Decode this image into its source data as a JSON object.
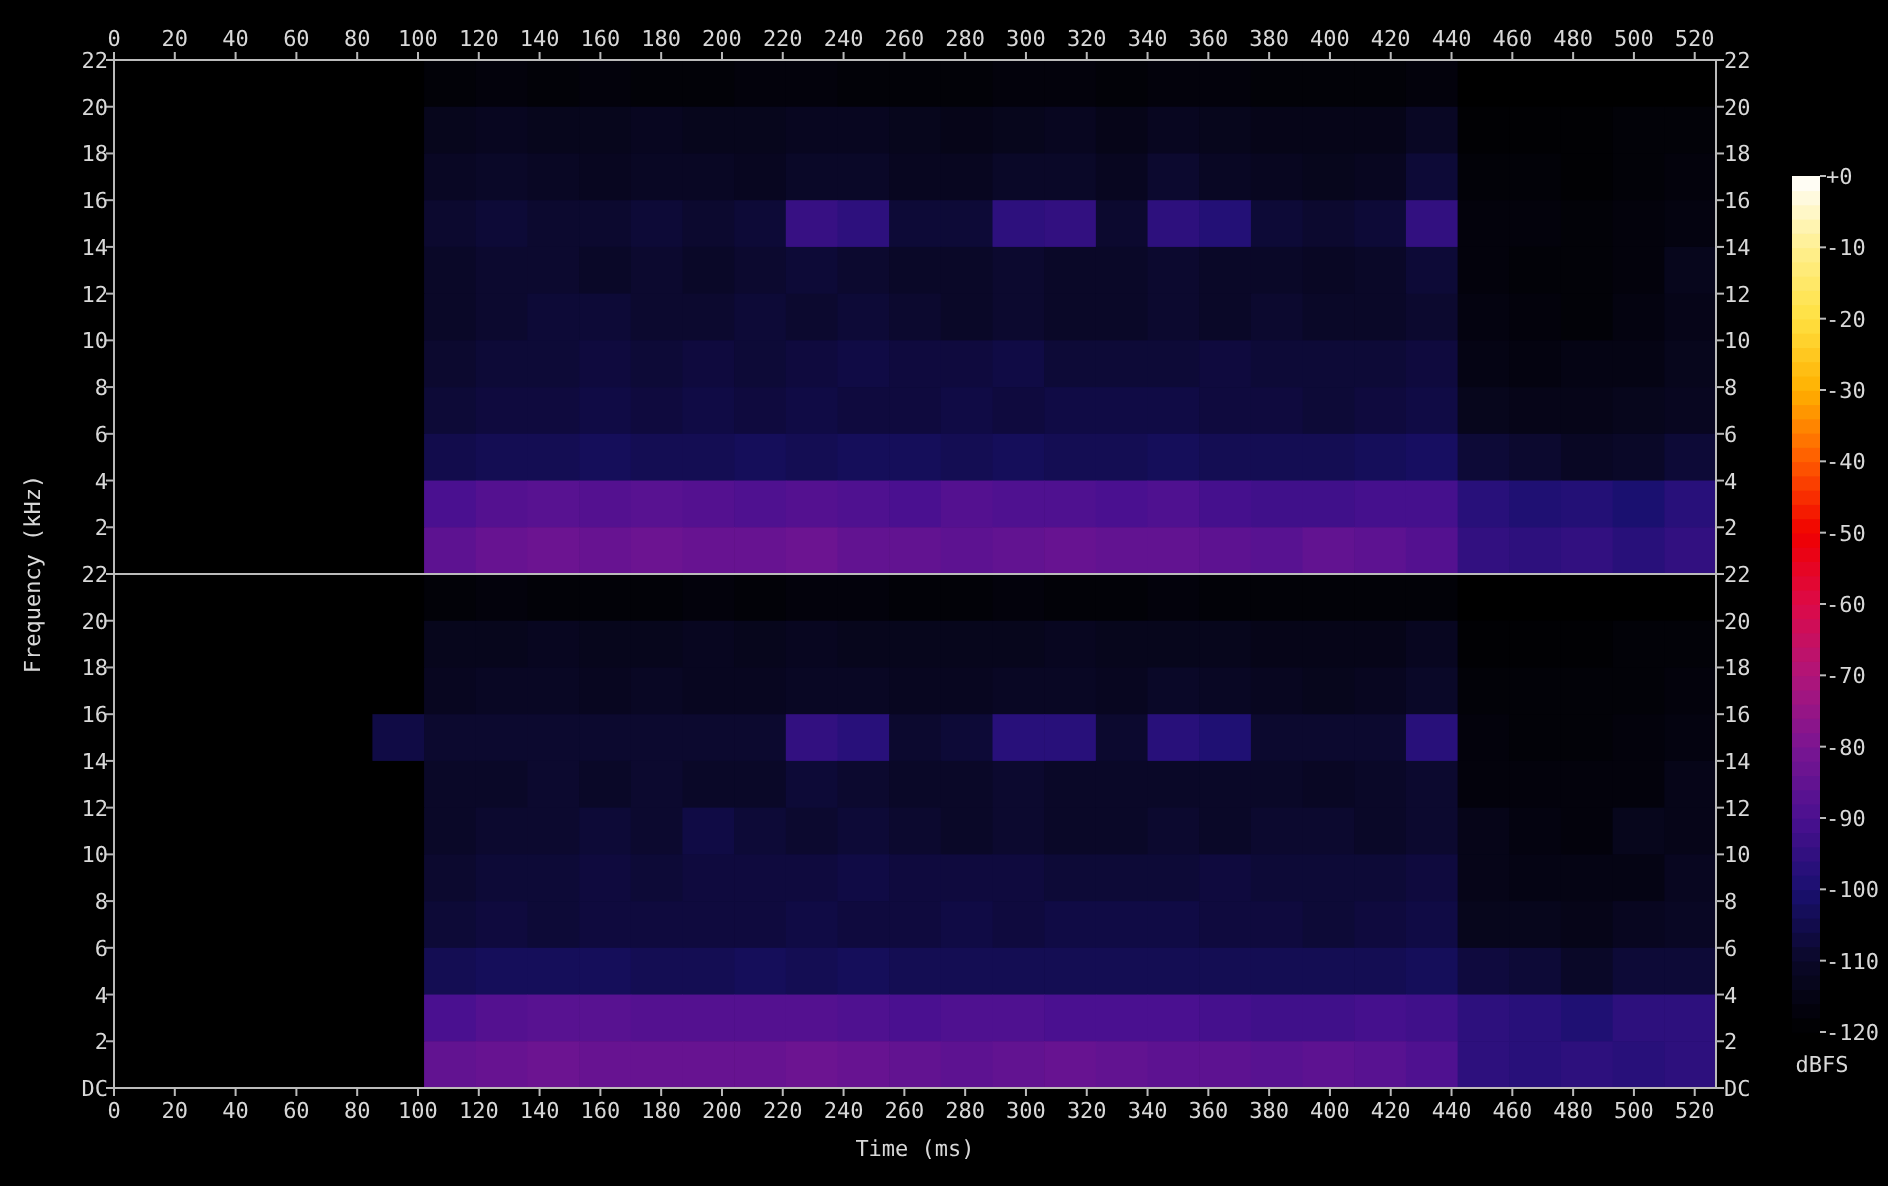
{
  "chart_data": [
    {
      "type": "heatmap",
      "ylabel": "Frequency (kHz)",
      "xlim": [
        0,
        527
      ],
      "xticks": [
        0,
        20,
        40,
        60,
        80,
        100,
        120,
        140,
        160,
        180,
        200,
        220,
        240,
        260,
        280,
        300,
        320,
        340,
        360,
        380,
        400,
        420,
        440,
        460,
        480,
        500,
        520
      ],
      "ylim": [
        0,
        22
      ],
      "yticks": [
        2,
        4,
        6,
        8,
        10,
        12,
        14,
        16,
        18,
        20,
        22
      ],
      "y2lim": [
        0,
        22
      ],
      "y2ticks": [
        2,
        4,
        6,
        8,
        10,
        12,
        14,
        16,
        18,
        20,
        22
      ],
      "clim": [
        -120,
        0
      ],
      "cticks": [
        {
          "value": 0,
          "label": "+0"
        },
        -20,
        -40,
        -60,
        -80,
        -100,
        -120
      ],
      "cells": [
        [
          -120,
          -120,
          -120,
          -120,
          -120,
          -120,
          -118,
          -117,
          -118,
          -117,
          -118,
          -118,
          -117,
          -117,
          -118,
          -118,
          -118,
          -117,
          -117,
          -118,
          -117,
          -117,
          -118,
          -118,
          -118,
          -117,
          -120,
          -120,
          -120,
          -120,
          -120
        ],
        [
          -120,
          -120,
          -120,
          -120,
          -120,
          -120,
          -113,
          -112,
          -113,
          -113,
          -112,
          -113,
          -113,
          -112,
          -112,
          -113,
          -114,
          -113,
          -112,
          -114,
          -112,
          -113,
          -114,
          -114,
          -114,
          -111,
          -119,
          -119,
          -119,
          -118,
          -118
        ],
        [
          -120,
          -120,
          -120,
          -120,
          -120,
          -120,
          -111,
          -110,
          -111,
          -112,
          -111,
          -111,
          -112,
          -110,
          -110,
          -112,
          -112,
          -110,
          -110,
          -112,
          -109,
          -111,
          -112,
          -113,
          -112,
          -108,
          -118,
          -118,
          -119,
          -118,
          -117
        ],
        [
          -120,
          -120,
          -120,
          -120,
          -120,
          -120,
          -109,
          -108,
          -109,
          -109,
          -108,
          -109,
          -108,
          -94,
          -96,
          -108,
          -108,
          -96,
          -95,
          -109,
          -96,
          -98,
          -108,
          -109,
          -108,
          -95,
          -117,
          -117,
          -118,
          -117,
          -116
        ],
        [
          -120,
          -120,
          -120,
          -120,
          -120,
          -120,
          -110,
          -109,
          -109,
          -110,
          -109,
          -110,
          -109,
          -108,
          -109,
          -110,
          -110,
          -109,
          -110,
          -110,
          -109,
          -110,
          -110,
          -111,
          -110,
          -108,
          -117,
          -118,
          -118,
          -117,
          -113
        ],
        [
          -120,
          -120,
          -120,
          -120,
          -120,
          -120,
          -110,
          -109,
          -108,
          -108,
          -109,
          -109,
          -108,
          -109,
          -108,
          -109,
          -110,
          -109,
          -110,
          -110,
          -109,
          -110,
          -109,
          -110,
          -110,
          -109,
          -116,
          -117,
          -118,
          -116,
          -114
        ],
        [
          -120,
          -120,
          -120,
          -120,
          -120,
          -120,
          -109,
          -108,
          -108,
          -107,
          -108,
          -107,
          -108,
          -107,
          -106,
          -107,
          -107,
          -106,
          -108,
          -108,
          -108,
          -107,
          -108,
          -108,
          -108,
          -107,
          -115,
          -116,
          -115,
          -115,
          -113
        ],
        [
          -120,
          -120,
          -120,
          -120,
          -120,
          -120,
          -108,
          -107,
          -107,
          -106,
          -107,
          -106,
          -107,
          -106,
          -107,
          -107,
          -106,
          -107,
          -106,
          -106,
          -106,
          -107,
          -107,
          -108,
          -107,
          -106,
          -113,
          -114,
          -114,
          -113,
          -112
        ],
        [
          -120,
          -120,
          -120,
          -120,
          -120,
          -120,
          -105,
          -104,
          -104,
          -103,
          -104,
          -104,
          -103,
          -104,
          -103,
          -103,
          -104,
          -103,
          -104,
          -104,
          -103,
          -104,
          -104,
          -104,
          -103,
          -102,
          -108,
          -109,
          -111,
          -110,
          -108
        ],
        [
          -120,
          -120,
          -120,
          -120,
          -120,
          -120,
          -90,
          -88,
          -87,
          -88,
          -87,
          -88,
          -89,
          -88,
          -89,
          -90,
          -88,
          -89,
          -89,
          -90,
          -89,
          -91,
          -92,
          -92,
          -91,
          -91,
          -97,
          -99,
          -98,
          -100,
          -97
        ],
        [
          -120,
          -120,
          -120,
          -120,
          -120,
          -120,
          -86,
          -84,
          -83,
          -84,
          -83,
          -84,
          -84,
          -83,
          -85,
          -85,
          -86,
          -85,
          -84,
          -85,
          -85,
          -86,
          -87,
          -85,
          -86,
          -88,
          -95,
          -96,
          -95,
          -97,
          -95
        ]
      ]
    },
    {
      "type": "heatmap",
      "xlabel": "Time (ms)",
      "xlim": [
        0,
        527
      ],
      "xticks": [
        0,
        20,
        40,
        60,
        80,
        100,
        120,
        140,
        160,
        180,
        200,
        220,
        240,
        260,
        280,
        300,
        320,
        340,
        360,
        380,
        400,
        420,
        440,
        460,
        480,
        500,
        520
      ],
      "ylim": [
        0,
        22
      ],
      "yticks": [
        {
          "value": 0,
          "label": "DC"
        },
        2,
        4,
        6,
        8,
        10,
        12,
        14,
        16,
        18,
        20,
        22
      ],
      "y2lim": [
        0,
        22
      ],
      "y2ticks": [
        {
          "value": 0,
          "label": "DC"
        },
        2,
        4,
        6,
        8,
        10,
        12,
        14,
        16,
        18,
        20,
        22
      ],
      "clim": [
        -120,
        0
      ],
      "cticks": [
        -10,
        -30,
        -50,
        -70,
        -90,
        -110
      ],
      "clabel": "dBFS",
      "cells": [
        [
          -120,
          -120,
          -120,
          -120,
          -120,
          -120,
          -118,
          -117,
          -118,
          -118,
          -118,
          -117,
          -118,
          -117,
          -117,
          -118,
          -118,
          -117,
          -118,
          -118,
          -117,
          -118,
          -118,
          -118,
          -118,
          -118,
          -120,
          -120,
          -120,
          -120,
          -120
        ],
        [
          -120,
          -120,
          -120,
          -120,
          -120,
          -120,
          -113,
          -113,
          -112,
          -113,
          -113,
          -112,
          -113,
          -112,
          -113,
          -113,
          -113,
          -113,
          -112,
          -113,
          -113,
          -113,
          -114,
          -114,
          -114,
          -112,
          -119,
          -119,
          -119,
          -118,
          -118
        ],
        [
          -120,
          -120,
          -120,
          -120,
          -120,
          -120,
          -112,
          -111,
          -111,
          -112,
          -111,
          -112,
          -112,
          -111,
          -111,
          -112,
          -112,
          -111,
          -111,
          -112,
          -110,
          -111,
          -112,
          -113,
          -112,
          -110,
          -118,
          -118,
          -118,
          -118,
          -117
        ],
        [
          -120,
          -120,
          -120,
          -120,
          -120,
          -106,
          -109,
          -109,
          -109,
          -109,
          -109,
          -109,
          -109,
          -95,
          -97,
          -109,
          -108,
          -97,
          -97,
          -109,
          -97,
          -99,
          -109,
          -109,
          -109,
          -97,
          -117,
          -118,
          -118,
          -117,
          -116
        ],
        [
          -120,
          -120,
          -120,
          -120,
          -120,
          -120,
          -110,
          -110,
          -109,
          -110,
          -109,
          -110,
          -110,
          -108,
          -109,
          -110,
          -110,
          -109,
          -110,
          -110,
          -110,
          -110,
          -110,
          -111,
          -110,
          -109,
          -117,
          -117,
          -117,
          -117,
          -114
        ],
        [
          -120,
          -120,
          -120,
          -120,
          -120,
          -120,
          -110,
          -109,
          -109,
          -108,
          -109,
          -106,
          -108,
          -109,
          -108,
          -109,
          -110,
          -109,
          -110,
          -110,
          -109,
          -110,
          -109,
          -109,
          -110,
          -109,
          -114,
          -116,
          -117,
          -113,
          -114
        ],
        [
          -120,
          -120,
          -120,
          -120,
          -120,
          -120,
          -109,
          -108,
          -108,
          -107,
          -108,
          -107,
          -107,
          -107,
          -106,
          -107,
          -107,
          -107,
          -108,
          -108,
          -108,
          -107,
          -108,
          -108,
          -108,
          -107,
          -114,
          -115,
          -115,
          -115,
          -112
        ],
        [
          -120,
          -120,
          -120,
          -120,
          -120,
          -120,
          -108,
          -107,
          -108,
          -107,
          -107,
          -107,
          -107,
          -106,
          -107,
          -107,
          -106,
          -107,
          -106,
          -106,
          -106,
          -107,
          -107,
          -108,
          -107,
          -106,
          -113,
          -113,
          -114,
          -112,
          -111
        ],
        [
          -120,
          -120,
          -120,
          -120,
          -120,
          -120,
          -104,
          -103,
          -103,
          -103,
          -104,
          -104,
          -103,
          -104,
          -103,
          -104,
          -104,
          -104,
          -104,
          -104,
          -104,
          -104,
          -104,
          -104,
          -104,
          -103,
          -107,
          -108,
          -110,
          -108,
          -108
        ],
        [
          -120,
          -120,
          -120,
          -120,
          -120,
          -120,
          -90,
          -88,
          -87,
          -87,
          -88,
          -88,
          -88,
          -88,
          -89,
          -90,
          -89,
          -89,
          -90,
          -90,
          -90,
          -91,
          -92,
          -92,
          -91,
          -92,
          -96,
          -97,
          -99,
          -96,
          -96
        ],
        [
          -120,
          -120,
          -120,
          -120,
          -120,
          -120,
          -85,
          -84,
          -83,
          -84,
          -84,
          -84,
          -84,
          -83,
          -84,
          -85,
          -86,
          -85,
          -84,
          -85,
          -86,
          -86,
          -87,
          -86,
          -87,
          -89,
          -96,
          -97,
          -96,
          -97,
          -96
        ]
      ]
    }
  ]
}
